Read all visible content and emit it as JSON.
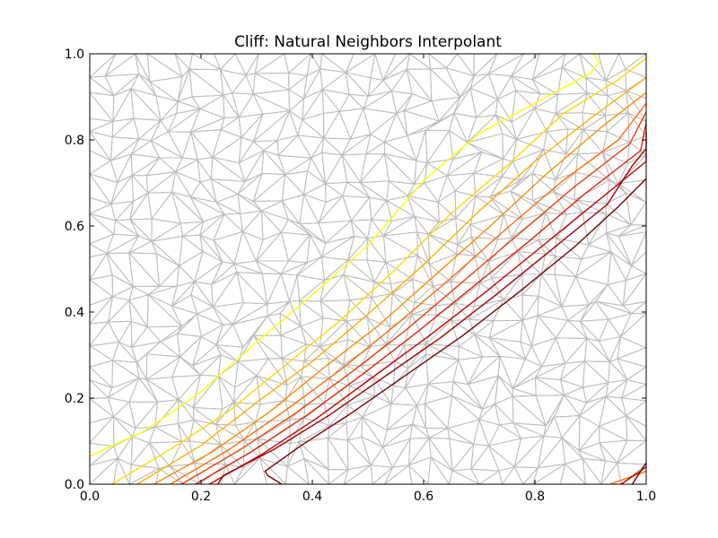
{
  "chart_data": {
    "type": "contour",
    "title": "Cliff: Natural Neighbors Interpolant",
    "xlabel": "",
    "ylabel": "",
    "xlim": [
      0.0,
      1.0
    ],
    "ylim": [
      0.0,
      1.0
    ],
    "xticks": [
      "0.0",
      "0.2",
      "0.4",
      "0.6",
      "0.8",
      "1.0"
    ],
    "yticks": [
      "0.0",
      "0.2",
      "0.4",
      "0.6",
      "0.8",
      "1.0"
    ],
    "grid": false,
    "legend": "none",
    "mesh": {
      "kind": "delaunay-triangulation",
      "color": "#bdbdbd"
    },
    "contour_lines": [
      {
        "color": "#ffff00",
        "points": [
          [
            0.0,
            0.065
          ],
          [
            0.1,
            0.125
          ],
          [
            0.2,
            0.215
          ],
          [
            0.3,
            0.33
          ],
          [
            0.4,
            0.44
          ],
          [
            0.5,
            0.555
          ],
          [
            0.6,
            0.705
          ],
          [
            0.7,
            0.815
          ],
          [
            0.8,
            0.885
          ],
          [
            0.9,
            0.955
          ],
          [
            0.915,
            0.98
          ],
          [
            0.905,
            1.0
          ]
        ]
      },
      {
        "color": "#ffd700",
        "points": [
          [
            0.04,
            0.0
          ],
          [
            0.15,
            0.085
          ],
          [
            0.25,
            0.17
          ],
          [
            0.35,
            0.275
          ],
          [
            0.45,
            0.38
          ],
          [
            0.55,
            0.5
          ],
          [
            0.65,
            0.63
          ],
          [
            0.75,
            0.74
          ],
          [
            0.85,
            0.86
          ],
          [
            0.95,
            0.94
          ],
          [
            1.0,
            0.99
          ]
        ]
      },
      {
        "color": "#ffb000",
        "points": [
          [
            0.085,
            0.0
          ],
          [
            0.2,
            0.09
          ],
          [
            0.3,
            0.19
          ],
          [
            0.4,
            0.285
          ],
          [
            0.5,
            0.395
          ],
          [
            0.6,
            0.51
          ],
          [
            0.7,
            0.635
          ],
          [
            0.8,
            0.75
          ],
          [
            0.9,
            0.85
          ],
          [
            1.0,
            0.945
          ]
        ]
      },
      {
        "color": "#ff8c00",
        "points": [
          [
            0.115,
            0.0
          ],
          [
            0.22,
            0.075
          ],
          [
            0.32,
            0.165
          ],
          [
            0.42,
            0.27
          ],
          [
            0.52,
            0.37
          ],
          [
            0.62,
            0.485
          ],
          [
            0.72,
            0.6
          ],
          [
            0.82,
            0.72
          ],
          [
            0.92,
            0.83
          ],
          [
            1.0,
            0.91
          ]
        ]
      },
      {
        "color": "#ff6a00",
        "points": [
          [
            0.145,
            0.0
          ],
          [
            0.25,
            0.08
          ],
          [
            0.35,
            0.17
          ],
          [
            0.45,
            0.265
          ],
          [
            0.55,
            0.37
          ],
          [
            0.65,
            0.48
          ],
          [
            0.75,
            0.595
          ],
          [
            0.85,
            0.705
          ],
          [
            0.95,
            0.8
          ],
          [
            1.0,
            0.885
          ]
        ]
      },
      {
        "color": "#f04000",
        "points": [
          [
            0.165,
            0.0
          ],
          [
            0.27,
            0.08
          ],
          [
            0.37,
            0.165
          ],
          [
            0.47,
            0.26
          ],
          [
            0.57,
            0.36
          ],
          [
            0.67,
            0.47
          ],
          [
            0.77,
            0.58
          ],
          [
            0.87,
            0.69
          ],
          [
            0.97,
            0.79
          ],
          [
            1.0,
            0.865
          ]
        ]
      },
      {
        "color": "#e02000",
        "points": [
          [
            0.19,
            0.0
          ],
          [
            0.29,
            0.075
          ],
          [
            0.39,
            0.16
          ],
          [
            0.49,
            0.255
          ],
          [
            0.59,
            0.355
          ],
          [
            0.69,
            0.46
          ],
          [
            0.79,
            0.565
          ],
          [
            0.89,
            0.675
          ],
          [
            0.99,
            0.775
          ],
          [
            1.0,
            0.84
          ]
        ]
      },
      {
        "color": "#c80000",
        "points": [
          [
            0.215,
            0.0
          ],
          [
            0.31,
            0.07
          ],
          [
            0.41,
            0.155
          ],
          [
            0.51,
            0.25
          ],
          [
            0.61,
            0.345
          ],
          [
            0.71,
            0.445
          ],
          [
            0.81,
            0.55
          ],
          [
            0.91,
            0.655
          ],
          [
            1.0,
            0.75
          ],
          [
            1.0,
            0.82
          ]
        ]
      },
      {
        "color": "#a00000",
        "points": [
          [
            0.23,
            0.0
          ],
          [
            0.24,
            0.02
          ],
          [
            0.33,
            0.08
          ],
          [
            0.43,
            0.16
          ],
          [
            0.53,
            0.25
          ],
          [
            0.63,
            0.34
          ],
          [
            0.73,
            0.44
          ],
          [
            0.83,
            0.545
          ],
          [
            0.93,
            0.65
          ],
          [
            0.975,
            0.74
          ],
          [
            1.0,
            0.78
          ]
        ]
      },
      {
        "color": "#780000",
        "points": [
          [
            0.345,
            0.0
          ],
          [
            0.32,
            0.02
          ],
          [
            0.315,
            0.03
          ],
          [
            0.38,
            0.09
          ],
          [
            0.47,
            0.165
          ],
          [
            0.57,
            0.255
          ],
          [
            0.67,
            0.345
          ],
          [
            0.77,
            0.445
          ],
          [
            0.87,
            0.55
          ],
          [
            0.95,
            0.645
          ],
          [
            1.0,
            0.71
          ]
        ]
      },
      {
        "color": "#ff6a00",
        "points": [
          [
            0.935,
            0.0
          ],
          [
            1.0,
            0.03
          ]
        ]
      },
      {
        "color": "#c80000",
        "points": [
          [
            0.955,
            0.0
          ],
          [
            1.0,
            0.04
          ]
        ]
      },
      {
        "color": "#780000",
        "points": [
          [
            0.975,
            0.0
          ],
          [
            1.0,
            0.05
          ]
        ]
      }
    ]
  }
}
